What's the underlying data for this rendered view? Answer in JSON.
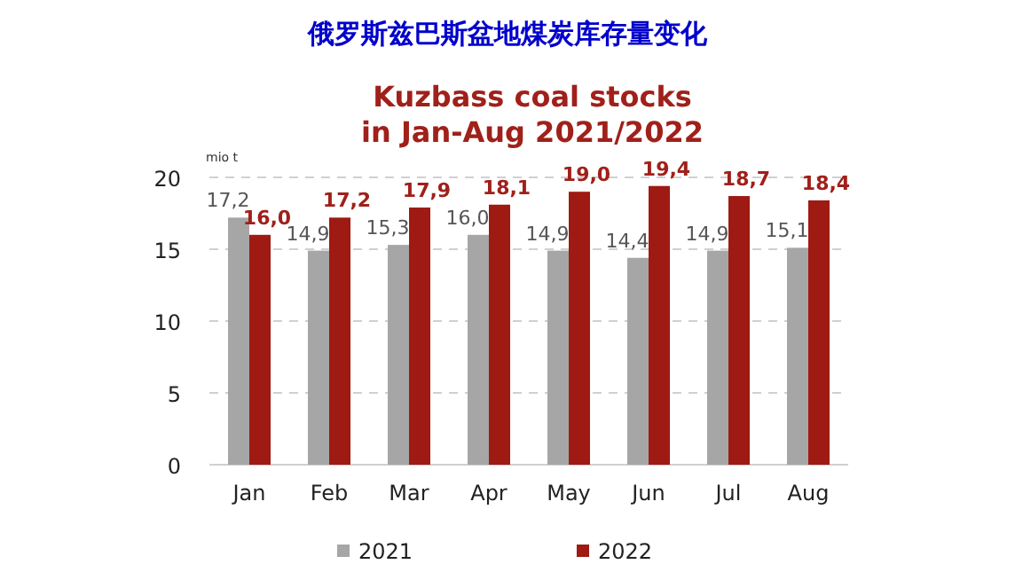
{
  "chart_data": {
    "type": "bar",
    "title": "俄罗斯兹巴斯盆地煤炭库存量变化",
    "subtitle": "Kuzbass coal stocks\nin Jan-Aug 2021/2022",
    "ylabel": "mio t",
    "categories": [
      "Jan",
      "Feb",
      "Mar",
      "Apr",
      "May",
      "Jun",
      "Jul",
      "Aug"
    ],
    "series": [
      {
        "name": "2021",
        "color": "#a6a6a6",
        "values": [
          17.2,
          14.9,
          15.3,
          16.0,
          14.9,
          14.4,
          14.9,
          15.1
        ],
        "value_labels": [
          "17,2",
          "14,9",
          "15,3",
          "16,0",
          "14,9",
          "14,4",
          "14,9",
          "15,1"
        ]
      },
      {
        "name": "2022",
        "color": "#9e1a13",
        "values": [
          16.0,
          17.2,
          17.9,
          18.1,
          19.0,
          19.4,
          18.7,
          18.4
        ],
        "value_labels": [
          "16,0",
          "17,2",
          "17,9",
          "18,1",
          "19,0",
          "19,4",
          "18,7",
          "18,4"
        ]
      }
    ],
    "ylim": [
      0,
      20
    ],
    "yticks": [
      0,
      5,
      10,
      15,
      20
    ],
    "grid": "y",
    "legend": "bottom"
  }
}
